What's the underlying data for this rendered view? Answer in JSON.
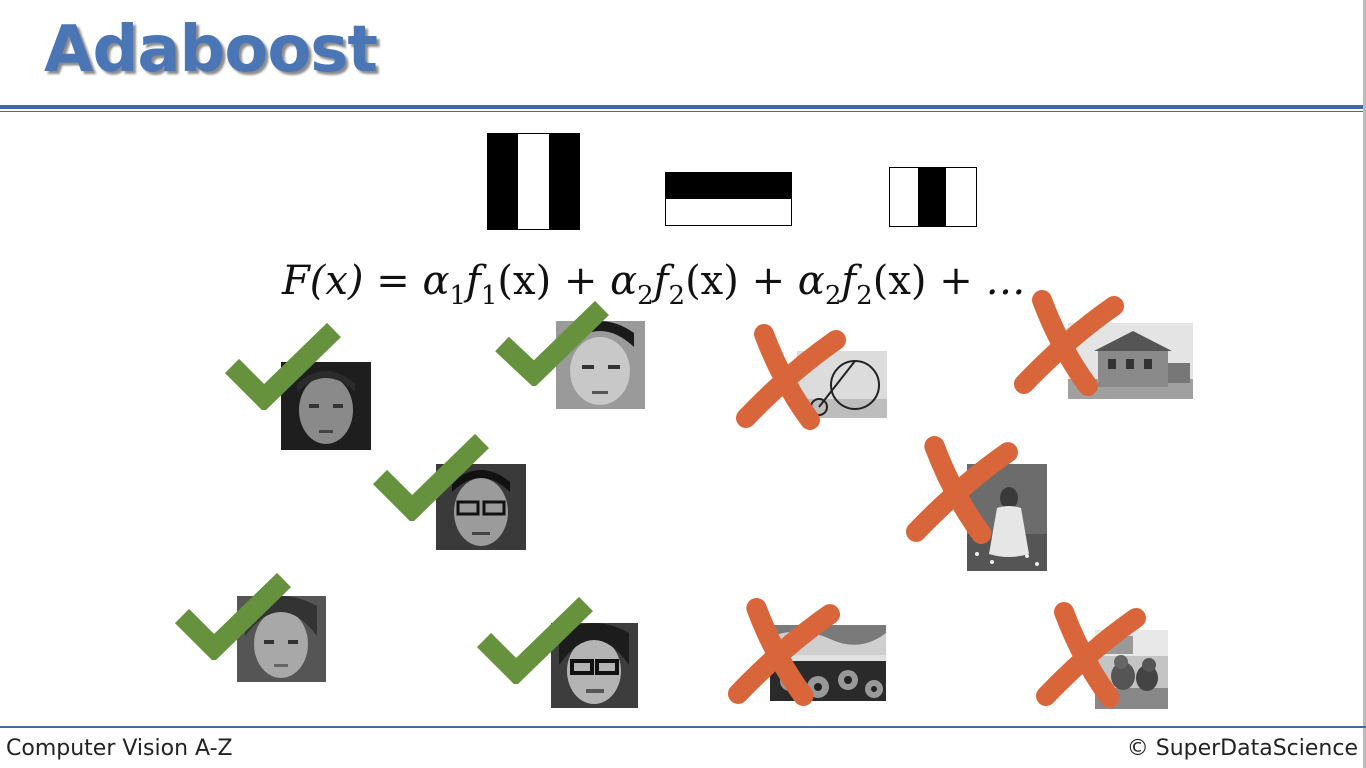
{
  "slide": {
    "title": "Adaboost",
    "formula": {
      "lhs": "F(x)",
      "eq": "=",
      "terms": [
        {
          "coef": "α",
          "coef_sub": "1",
          "fn": "f",
          "fn_sub": "1",
          "arg": "(x)"
        },
        {
          "coef": "α",
          "coef_sub": "2",
          "fn": "f",
          "fn_sub": "2",
          "arg": "(x)"
        },
        {
          "coef": "α",
          "coef_sub": "2",
          "fn": "f",
          "fn_sub": "2",
          "arg": "(x)"
        }
      ],
      "plus": "+",
      "ellipsis": "…"
    }
  },
  "footer": {
    "left": "Computer Vision A-Z",
    "right": "© SuperDataScience"
  },
  "colors": {
    "accent": "#4a76b5",
    "rule": "#3e6aa8",
    "check": "#66913d",
    "cross": "#d9653b"
  },
  "icons": {
    "check": "check-icon",
    "cross": "cross-icon"
  }
}
